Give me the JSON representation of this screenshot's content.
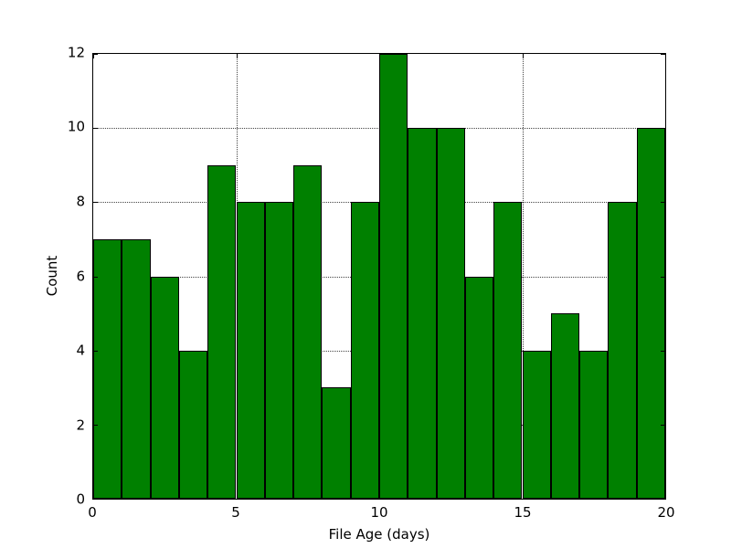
{
  "chart_data": {
    "type": "bar",
    "title": "",
    "xlabel": "File Age (days)",
    "ylabel": "Count",
    "categories": [
      "0-1",
      "1-2",
      "2-3",
      "3-4",
      "4-5",
      "5-6",
      "6-7",
      "7-8",
      "8-9",
      "9-10",
      "10-11",
      "11-12",
      "12-13",
      "13-14",
      "14-15",
      "15-16",
      "16-17",
      "17-18",
      "18-19",
      "19-20"
    ],
    "values": [
      7,
      7,
      6,
      4,
      9,
      8,
      8,
      9,
      3,
      8,
      12,
      10,
      10,
      6,
      8,
      4,
      5,
      4,
      8,
      10
    ],
    "xlim": [
      0,
      20
    ],
    "ylim": [
      0,
      12
    ],
    "xticks": [
      0,
      5,
      10,
      15,
      20
    ],
    "yticks": [
      0,
      2,
      4,
      6,
      8,
      10,
      12
    ],
    "grid": true,
    "grid_style": "dotted",
    "legend": "none",
    "bar_color": "#008000",
    "bar_edge_color": "#000000",
    "background_color": "#ffffff"
  }
}
